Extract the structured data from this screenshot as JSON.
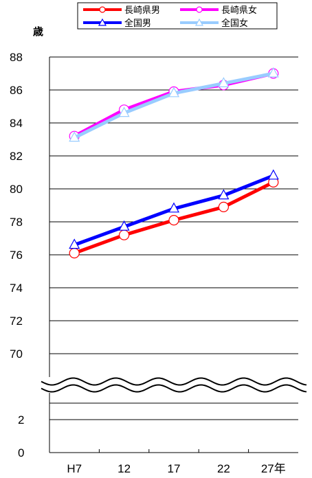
{
  "chart_data": {
    "type": "line",
    "title": "",
    "ylabel": "歳",
    "xlabel": "",
    "categories": [
      "H7",
      "12",
      "17",
      "22",
      "27年"
    ],
    "y_ticks_upper": [
      "70",
      "72",
      "74",
      "76",
      "78",
      "80",
      "82",
      "84",
      "86",
      "88"
    ],
    "y_ticks_lower": [
      "0",
      "2"
    ],
    "ylim_upper": [
      69,
      88
    ],
    "ylim_lower": [
      0,
      3
    ],
    "axis_break": "wavy break between 3 and 69",
    "grid": true,
    "legend_position": "top",
    "series": [
      {
        "name": "長崎県男",
        "color": "#ff0000",
        "marker": "circle",
        "values": [
          76.1,
          77.2,
          78.1,
          78.9,
          80.4
        ]
      },
      {
        "name": "長崎県女",
        "color": "#ff00ff",
        "marker": "circle",
        "values": [
          83.2,
          84.8,
          85.9,
          86.3,
          87.0
        ]
      },
      {
        "name": "全国男",
        "color": "#0000ff",
        "marker": "triangle",
        "values": [
          76.6,
          77.7,
          78.8,
          79.6,
          80.8
        ]
      },
      {
        "name": "全国女",
        "color": "#99ccff",
        "marker": "triangle",
        "values": [
          83.1,
          84.6,
          85.8,
          86.4,
          87.0
        ]
      }
    ]
  }
}
